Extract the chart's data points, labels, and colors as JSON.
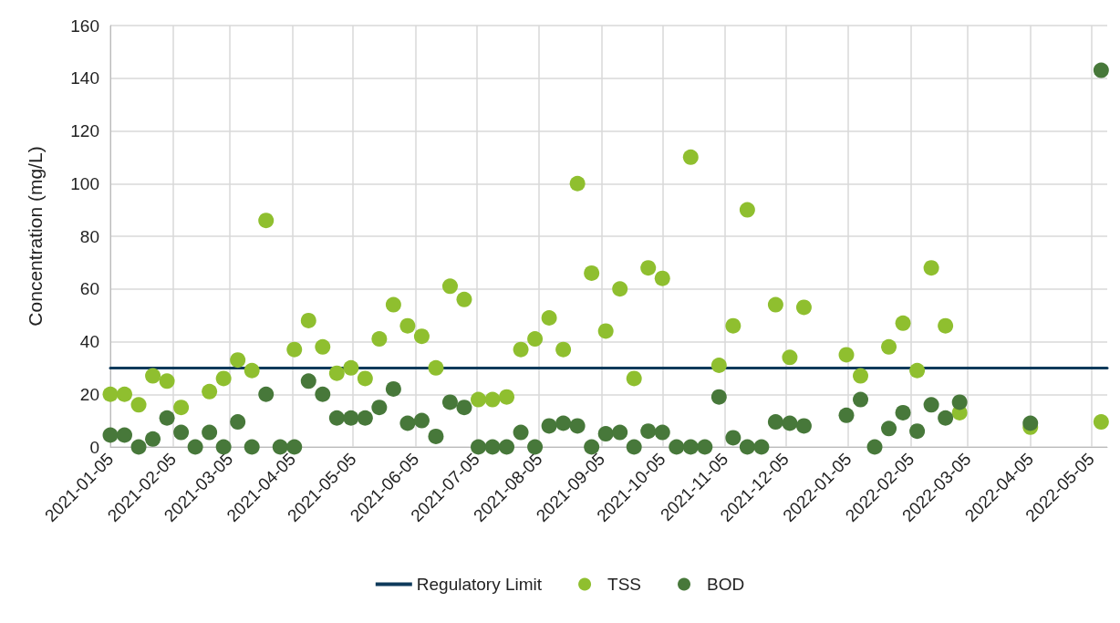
{
  "chart_data": {
    "type": "scatter",
    "ylabel": "Concentration (mg/L)",
    "xlim": [
      "2021-01-05",
      "2022-05-13"
    ],
    "ylim": [
      0,
      160
    ],
    "yticks": [
      0,
      20,
      40,
      60,
      80,
      100,
      120,
      140,
      160
    ],
    "xticks": [
      "2021-01-05",
      "2021-02-05",
      "2021-03-05",
      "2021-04-05",
      "2021-05-05",
      "2021-06-05",
      "2021-07-05",
      "2021-08-05",
      "2021-09-05",
      "2021-10-05",
      "2021-11-05",
      "2021-12-05",
      "2022-01-05",
      "2022-02-05",
      "2022-03-05",
      "2022-04-05",
      "2022-05-05"
    ],
    "grid": true,
    "legend": "bottom",
    "marker": "circle",
    "ref_lines": [
      {
        "axis": "y",
        "value": 30,
        "label": "Regulatory Limit",
        "color": "#0e3a5b",
        "line_style": "solid"
      }
    ],
    "series": [
      {
        "name": "TSS",
        "color": "#8fbf2f",
        "x": [
          "2021-01-05",
          "2021-01-12",
          "2021-01-19",
          "2021-01-26",
          "2021-02-02",
          "2021-02-09",
          "2021-02-23",
          "2021-03-02",
          "2021-03-09",
          "2021-03-16",
          "2021-03-23",
          "2021-04-06",
          "2021-04-13",
          "2021-04-20",
          "2021-04-27",
          "2021-05-04",
          "2021-05-11",
          "2021-05-18",
          "2021-05-25",
          "2021-06-01",
          "2021-06-08",
          "2021-06-15",
          "2021-06-22",
          "2021-06-29",
          "2021-07-06",
          "2021-07-13",
          "2021-07-20",
          "2021-07-27",
          "2021-08-03",
          "2021-08-10",
          "2021-08-17",
          "2021-08-24",
          "2021-08-31",
          "2021-09-07",
          "2021-09-14",
          "2021-09-21",
          "2021-09-28",
          "2021-10-05",
          "2021-10-19",
          "2021-11-02",
          "2021-11-09",
          "2021-11-16",
          "2021-11-30",
          "2021-12-07",
          "2021-12-14",
          "2022-01-04",
          "2022-01-11",
          "2022-01-25",
          "2022-02-01",
          "2022-02-08",
          "2022-02-15",
          "2022-02-22",
          "2022-03-01",
          "2022-04-05",
          "2022-05-10"
        ],
        "values": [
          20,
          20,
          16,
          27,
          25,
          15,
          21,
          26,
          33,
          29,
          86,
          37,
          48,
          38,
          28,
          30,
          26,
          41,
          54,
          46,
          42,
          30,
          61,
          56,
          18,
          18,
          19,
          37,
          41,
          49,
          37,
          100,
          66,
          44,
          60,
          26,
          68,
          64,
          110,
          31,
          46,
          90,
          54,
          34,
          53,
          35,
          27,
          38,
          47,
          29,
          68,
          46,
          13,
          7.5,
          9.5
        ]
      },
      {
        "name": "BOD",
        "color": "#47783a",
        "x": [
          "2021-01-05",
          "2021-01-12",
          "2021-01-19",
          "2021-01-26",
          "2021-02-02",
          "2021-02-09",
          "2021-02-16",
          "2021-02-23",
          "2021-03-02",
          "2021-03-09",
          "2021-03-16",
          "2021-03-23",
          "2021-03-30",
          "2021-04-06",
          "2021-04-13",
          "2021-04-20",
          "2021-04-27",
          "2021-05-04",
          "2021-05-11",
          "2021-05-18",
          "2021-05-25",
          "2021-06-01",
          "2021-06-08",
          "2021-06-15",
          "2021-06-22",
          "2021-06-29",
          "2021-07-06",
          "2021-07-13",
          "2021-07-20",
          "2021-07-27",
          "2021-08-03",
          "2021-08-10",
          "2021-08-17",
          "2021-08-24",
          "2021-08-31",
          "2021-09-07",
          "2021-09-14",
          "2021-09-21",
          "2021-09-28",
          "2021-10-05",
          "2021-10-12",
          "2021-10-19",
          "2021-10-26",
          "2021-11-02",
          "2021-11-09",
          "2021-11-16",
          "2021-11-23",
          "2021-11-30",
          "2021-12-07",
          "2021-12-14",
          "2022-01-04",
          "2022-01-11",
          "2022-01-18",
          "2022-01-25",
          "2022-02-01",
          "2022-02-08",
          "2022-02-15",
          "2022-02-22",
          "2022-03-01",
          "2022-04-05",
          "2022-05-10"
        ],
        "values": [
          4.5,
          4.5,
          0,
          3,
          11,
          5.5,
          0,
          5.5,
          0,
          9.5,
          0,
          20,
          0,
          0,
          25,
          20,
          11,
          11,
          11,
          15,
          22,
          9,
          10,
          4,
          17,
          15,
          0,
          0,
          0,
          5.5,
          0,
          8,
          9,
          8,
          0,
          5,
          5.5,
          0,
          6,
          5.5,
          0,
          0,
          0,
          19,
          3.5,
          0,
          0,
          9.5,
          9,
          8,
          12,
          18,
          0,
          7,
          13,
          6,
          16,
          11,
          17,
          9,
          143
        ]
      }
    ]
  }
}
